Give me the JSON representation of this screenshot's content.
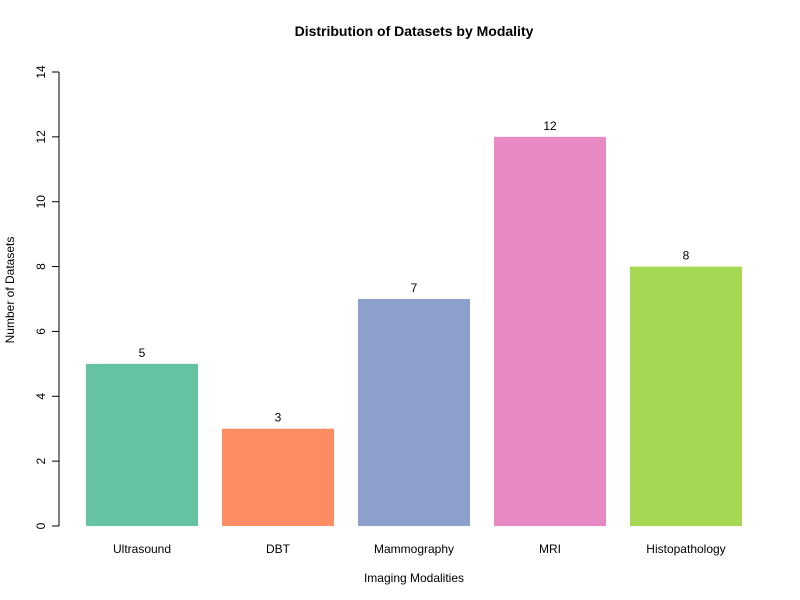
{
  "chart_data": {
    "type": "bar",
    "title": "Distribution of Datasets by Modality",
    "xlabel": "Imaging Modalities",
    "ylabel": "Number of Datasets",
    "categories": [
      "Ultrasound",
      "DBT",
      "Mammography",
      "MRI",
      "Histopathology"
    ],
    "values": [
      5,
      3,
      7,
      12,
      8
    ],
    "data_labels": [
      "5",
      "3",
      "7",
      "12",
      "8"
    ],
    "ylim": [
      0,
      14
    ],
    "yticks": [
      0,
      2,
      4,
      6,
      8,
      10,
      12,
      14
    ],
    "grid": false,
    "legend": "none",
    "colors": [
      "#66c2a5",
      "#fc8d62",
      "#8da0cb",
      "#e78ac3",
      "#a6d854"
    ]
  }
}
